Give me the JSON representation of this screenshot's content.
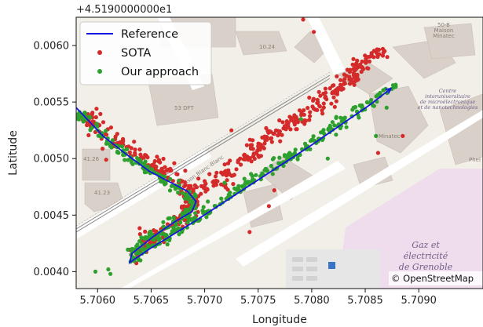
{
  "chart_data": {
    "type": "scatter",
    "title": "",
    "xlabel": "Longitude",
    "ylabel": "Latitude",
    "y_offset_label": "+4.5190000000e1",
    "xlim": [
      5.7058,
      5.7096
    ],
    "ylim": [
      0.00385,
      0.00625
    ],
    "x_ticks": [
      "5.7060",
      "5.7065",
      "5.7070",
      "5.7075",
      "5.7080",
      "5.7085",
      "5.7090"
    ],
    "y_ticks": [
      "0.0040",
      "0.0045",
      "0.0050",
      "0.0055",
      "0.0060"
    ],
    "legend": {
      "placement": "top-left",
      "entries": [
        "Reference",
        "SOTA",
        "Our approach"
      ]
    },
    "attribution": "© OpenStreetMap",
    "series": [
      {
        "name": "Reference",
        "kind": "line",
        "color": "#1515e0",
        "points": [
          [
            5.7058,
            0.00545
          ],
          [
            5.70605,
            0.0052
          ],
          [
            5.70628,
            0.00503
          ],
          [
            5.70648,
            0.00489
          ],
          [
            5.70668,
            0.00479
          ],
          [
            5.70684,
            0.00471
          ],
          [
            5.70692,
            0.00462
          ],
          [
            5.70688,
            0.00453
          ],
          [
            5.70672,
            0.00444
          ],
          [
            5.70652,
            0.00431
          ],
          [
            5.70632,
            0.00416
          ],
          [
            5.7063,
            0.00408
          ],
          [
            5.7065,
            0.00421
          ],
          [
            5.7069,
            0.00444
          ],
          [
            5.7074,
            0.00475
          ],
          [
            5.708,
            0.00512
          ],
          [
            5.70855,
            0.00548
          ],
          [
            5.70874,
            0.00562
          ]
        ]
      },
      {
        "name": "SOTA",
        "kind": "scatter",
        "color": "#d42a2a",
        "paths": [
          [
            [
              5.7059,
              0.00537
            ],
            [
              5.70612,
              0.00518
            ],
            [
              5.70632,
              0.00508
            ],
            [
              5.7065,
              0.00496
            ],
            [
              5.70672,
              0.00484
            ],
            [
              5.70688,
              0.0047
            ],
            [
              5.7069,
              0.00458
            ],
            [
              5.70678,
              0.00446
            ],
            [
              5.70655,
              0.00432
            ],
            [
              5.70638,
              0.0042
            ],
            [
              5.70636,
              0.00412
            ]
          ],
          [
            [
              5.7069,
              0.0047
            ],
            [
              5.7071,
              0.0048
            ],
            [
              5.70725,
              0.0049
            ],
            [
              5.7074,
              0.005
            ],
            [
              5.7075,
              0.00512
            ],
            [
              5.70765,
              0.00522
            ],
            [
              5.70785,
              0.00533
            ],
            [
              5.70805,
              0.00546
            ],
            [
              5.7082,
              0.00558
            ],
            [
              5.70835,
              0.0057
            ],
            [
              5.70845,
              0.00583
            ],
            [
              5.70855,
              0.00592
            ],
            [
              5.7087,
              0.00592
            ]
          ]
        ],
        "spread": [
          8e-05,
          8e-05
        ],
        "count": 560,
        "outliers": [
          [
            5.70792,
            0.00623
          ],
          [
            5.70802,
            0.00612
          ],
          [
            5.70623,
            0.00515
          ],
          [
            5.70608,
            0.00499
          ],
          [
            5.70742,
            0.00435
          ],
          [
            5.7076,
            0.00458
          ],
          [
            5.70765,
            0.00472
          ],
          [
            5.70862,
            0.00505
          ],
          [
            5.70885,
            0.0052
          ],
          [
            5.707,
            0.0048
          ],
          [
            5.70725,
            0.00525
          ]
        ]
      },
      {
        "name": "Our approach",
        "kind": "scatter",
        "color": "#2ea02e",
        "paths": [
          [
            [
              5.7058,
              0.00543
            ],
            [
              5.70605,
              0.00519
            ],
            [
              5.70628,
              0.00502
            ],
            [
              5.70648,
              0.00489
            ],
            [
              5.70668,
              0.00477
            ],
            [
              5.70684,
              0.0047
            ],
            [
              5.7069,
              0.0046
            ],
            [
              5.70684,
              0.00452
            ],
            [
              5.70666,
              0.00441
            ],
            [
              5.70648,
              0.0043
            ],
            [
              5.70632,
              0.00416
            ],
            [
              5.70632,
              0.0041
            ]
          ],
          [
            [
              5.70632,
              0.0041
            ],
            [
              5.7065,
              0.00422
            ],
            [
              5.7069,
              0.00445
            ],
            [
              5.7074,
              0.00478
            ],
            [
              5.708,
              0.00515
            ],
            [
              5.70855,
              0.0055
            ],
            [
              5.7088,
              0.00565
            ]
          ]
        ],
        "spread": [
          4e-05,
          5e-05
        ],
        "count": 460,
        "outliers": [
          [
            5.70598,
            0.004
          ],
          [
            5.7061,
            0.00402
          ],
          [
            5.70612,
            0.00398
          ],
          [
            5.7064,
            0.0041
          ],
          [
            5.70643,
            0.0042
          ],
          [
            5.7079,
            0.00535
          ],
          [
            5.70815,
            0.005
          ],
          [
            5.7087,
            0.00545
          ],
          [
            5.7086,
            0.0052
          ]
        ]
      }
    ]
  }
}
